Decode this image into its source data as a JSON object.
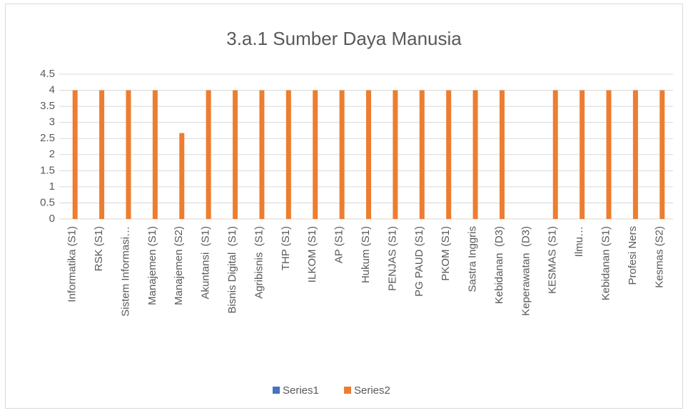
{
  "chart_data": {
    "type": "bar",
    "title": "3.a.1 Sumber Daya Manusia",
    "categories": [
      "Informatika (S1)",
      "RSK (S1)",
      "Sistem Informasi…",
      "Manajemen (S1)",
      "Manajemen (S2)",
      "Akuntansi  (S1)",
      "Bisnis Digital  (S1)",
      "Agribisnis  (S1)",
      "THP (S1)",
      "ILKOM (S1)",
      "AP (S1)",
      "Hukum (S1)",
      "PENJAS (S1)",
      "PG PAUD (S1)",
      "PKOM (S1)",
      "Sastra Inggris",
      "Kebidanan  (D3)",
      "Keperawatan  (D3)",
      "KESMAS (S1)",
      "Ilmu…",
      "Kebidanan (S1)",
      "Profesi Ners",
      "Kesmas (S2)"
    ],
    "series": [
      {
        "name": "Series1",
        "color": "#4472c4",
        "values": [
          0,
          0,
          0,
          0,
          0,
          0,
          0,
          0,
          0,
          0,
          0,
          0,
          0,
          0,
          0,
          0,
          0,
          0,
          0,
          0,
          0,
          0,
          0
        ]
      },
      {
        "name": "Series2",
        "color": "#ed7d31",
        "values": [
          4,
          4,
          4,
          4,
          2.67,
          4,
          4,
          4,
          4,
          4,
          4,
          4,
          4,
          4,
          4,
          4,
          4,
          0,
          4,
          4,
          4,
          4,
          4
        ]
      }
    ],
    "ylim": [
      0,
      4.5
    ],
    "yticks": [
      0,
      0.5,
      1,
      1.5,
      2,
      2.5,
      3,
      3.5,
      4,
      4.5
    ],
    "grid": true,
    "legend": "bottom"
  }
}
